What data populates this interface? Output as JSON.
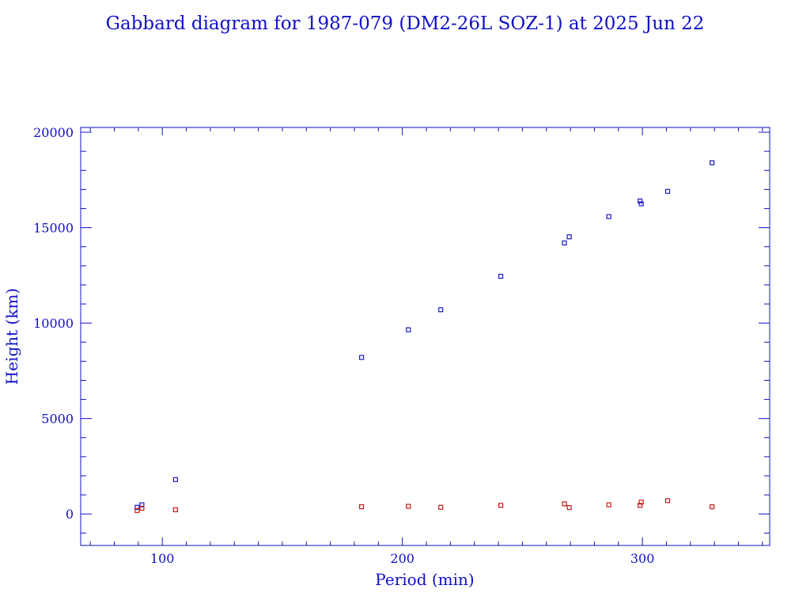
{
  "colors": {
    "axis": "#1010c8",
    "apogee": "#1a1acc",
    "perigee": "#d01818",
    "background": "#ffffff"
  },
  "chart_data": {
    "type": "scatter",
    "title": "Gabbard diagram for 1987-079 (DM2-26L SOZ-1) at 2025 Jun 22",
    "xlabel": "Period (min)",
    "ylabel": "Height (km)",
    "xlim": [
      66,
      353
    ],
    "ylim": [
      -1650,
      20250
    ],
    "xticks": [
      {
        "value": 100,
        "label": "100"
      },
      {
        "value": 200,
        "label": "200"
      },
      {
        "value": 300,
        "label": "300"
      }
    ],
    "xminor_step": 10,
    "yticks": [
      {
        "value": 0,
        "label": "0"
      },
      {
        "value": 5000,
        "label": "5000"
      },
      {
        "value": 10000,
        "label": "10000"
      },
      {
        "value": 15000,
        "label": "15000"
      },
      {
        "value": 20000,
        "label": "20000"
      }
    ],
    "yminor_step": 1000,
    "grid": false,
    "legend": "none",
    "series": [
      {
        "role": "apogee",
        "points": [
          [
            89.5,
            350
          ],
          [
            91.5,
            480
          ],
          [
            105.5,
            1800
          ],
          [
            183,
            8200
          ],
          [
            202.5,
            9650
          ],
          [
            216,
            10700
          ],
          [
            241,
            12450
          ],
          [
            267.5,
            14200
          ],
          [
            269.5,
            14520
          ],
          [
            286,
            15580
          ],
          [
            299,
            16400
          ],
          [
            299.5,
            16250
          ],
          [
            310.5,
            16900
          ],
          [
            329,
            18400
          ]
        ]
      },
      {
        "role": "perigee",
        "points": [
          [
            89.5,
            180
          ],
          [
            91.5,
            300
          ],
          [
            105.5,
            220
          ],
          [
            183,
            380
          ],
          [
            202.5,
            400
          ],
          [
            216,
            350
          ],
          [
            241,
            450
          ],
          [
            267.5,
            530
          ],
          [
            269.5,
            340
          ],
          [
            286,
            480
          ],
          [
            299,
            450
          ],
          [
            299.5,
            620
          ],
          [
            310.5,
            700
          ],
          [
            329,
            380
          ]
        ]
      }
    ]
  }
}
